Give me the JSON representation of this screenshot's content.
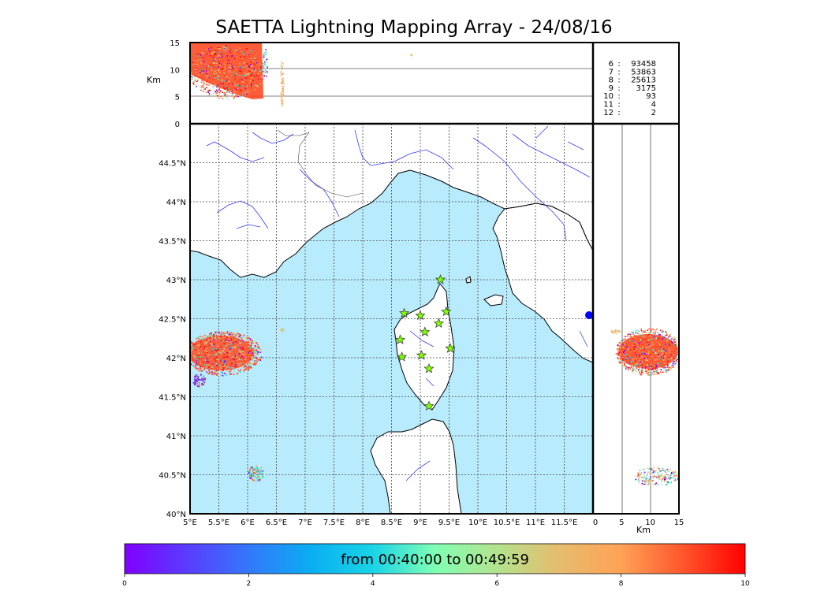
{
  "title": "SAETTA Lightning Mapping Array - 24/08/16",
  "top_panel": {
    "ylabel": "Km",
    "y_ticks": [
      "15",
      "10",
      "5",
      "0"
    ]
  },
  "side_panel": {
    "xlabel": "Km",
    "x_ticks": [
      "0",
      "5",
      "10",
      "15"
    ]
  },
  "map": {
    "lon_ticks": [
      "5°E",
      "5.5°E",
      "6°E",
      "6.5°E",
      "7°E",
      "7.5°E",
      "8°E",
      "8.5°E",
      "9°E",
      "9.5°E",
      "10°E",
      "10.5°E",
      "11°E",
      "11.5°E"
    ],
    "lat_ticks": [
      "44.5°N",
      "44°N",
      "43.5°N",
      "43°N",
      "42.5°N",
      "42°N",
      "41.5°N",
      "41°N",
      "40.5°N",
      "40°N"
    ],
    "colors": {
      "sea": "#b8ecfc",
      "land": "#ffffff",
      "rivers": "#3a3aff",
      "coast": "#000000",
      "stations": "#7fff00"
    },
    "stations": [
      {
        "lon": 9.35,
        "lat": 43.0
      },
      {
        "lon": 8.72,
        "lat": 42.57
      },
      {
        "lon": 9.0,
        "lat": 42.54
      },
      {
        "lon": 9.45,
        "lat": 42.59
      },
      {
        "lon": 9.32,
        "lat": 42.44
      },
      {
        "lon": 9.08,
        "lat": 42.33
      },
      {
        "lon": 8.65,
        "lat": 42.23
      },
      {
        "lon": 9.52,
        "lat": 42.12
      },
      {
        "lon": 9.02,
        "lat": 42.03
      },
      {
        "lon": 8.68,
        "lat": 42.01
      },
      {
        "lon": 9.15,
        "lat": 41.86
      },
      {
        "lon": 9.15,
        "lat": 41.38
      }
    ]
  },
  "counts": [
    {
      "label": "6",
      "value": "93458",
      "color": "#000000"
    },
    {
      "label": "7",
      "value": "53863",
      "color": "#ff0000"
    },
    {
      "label": "8",
      "value": "25613",
      "color": "#000000"
    },
    {
      "label": "9",
      "value": "3175",
      "color": "#000000"
    },
    {
      "label": "10",
      "value": "93",
      "color": "#000000"
    },
    {
      "label": "11",
      "value": "4",
      "color": "#000000"
    },
    {
      "label": "12",
      "value": "2",
      "color": "#000000"
    }
  ],
  "colorbar": {
    "text": "from 00:40:00 to 00:49:59",
    "ticks": [
      "0",
      "2",
      "4",
      "6",
      "8",
      "10"
    ]
  }
}
